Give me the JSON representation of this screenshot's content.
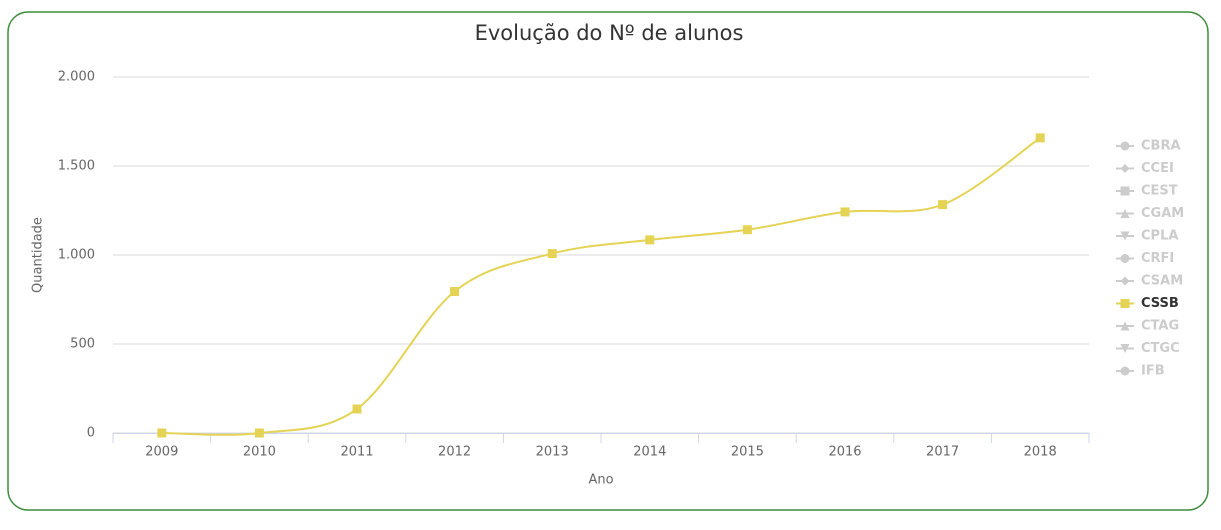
{
  "chart_data": {
    "type": "line",
    "title": "Evolução do Nº de alunos",
    "x_label": "Ano",
    "y_label": "Quantidade",
    "categories": [
      "2009",
      "2010",
      "2011",
      "2012",
      "2013",
      "2014",
      "2015",
      "2016",
      "2017",
      "2018"
    ],
    "series": [
      {
        "name": "CBRA",
        "color": "#cccccc",
        "marker": "circle",
        "visible": false
      },
      {
        "name": "CCEI",
        "color": "#cccccc",
        "marker": "diamond",
        "visible": false
      },
      {
        "name": "CEST",
        "color": "#cccccc",
        "marker": "square",
        "visible": false
      },
      {
        "name": "CGAM",
        "color": "#cccccc",
        "marker": "triangle",
        "visible": false
      },
      {
        "name": "CPLA",
        "color": "#cccccc",
        "marker": "triangle-down",
        "visible": false
      },
      {
        "name": "CRFI",
        "color": "#cccccc",
        "marker": "circle",
        "visible": false
      },
      {
        "name": "CSAM",
        "color": "#cccccc",
        "marker": "diamond",
        "visible": false
      },
      {
        "name": "CSSB",
        "color": "#e4d354",
        "marker": "square",
        "visible": true,
        "values": [
          0,
          0,
          135,
          795,
          1008,
          1085,
          1142,
          1242,
          1283,
          1658
        ]
      },
      {
        "name": "CTAG",
        "color": "#cccccc",
        "marker": "triangle",
        "visible": false
      },
      {
        "name": "CTGC",
        "color": "#cccccc",
        "marker": "triangle-down",
        "visible": false
      },
      {
        "name": "IFB",
        "color": "#cccccc",
        "marker": "circle",
        "visible": false
      }
    ],
    "ylim": [
      0,
      2000
    ],
    "yticks": [
      0,
      500,
      {
        "value": 1000,
        "label": "1.000"
      },
      {
        "value": 1500,
        "label": "1.500"
      },
      {
        "value": 2000,
        "label": "2.000"
      }
    ],
    "grid": true,
    "legend": "right"
  }
}
